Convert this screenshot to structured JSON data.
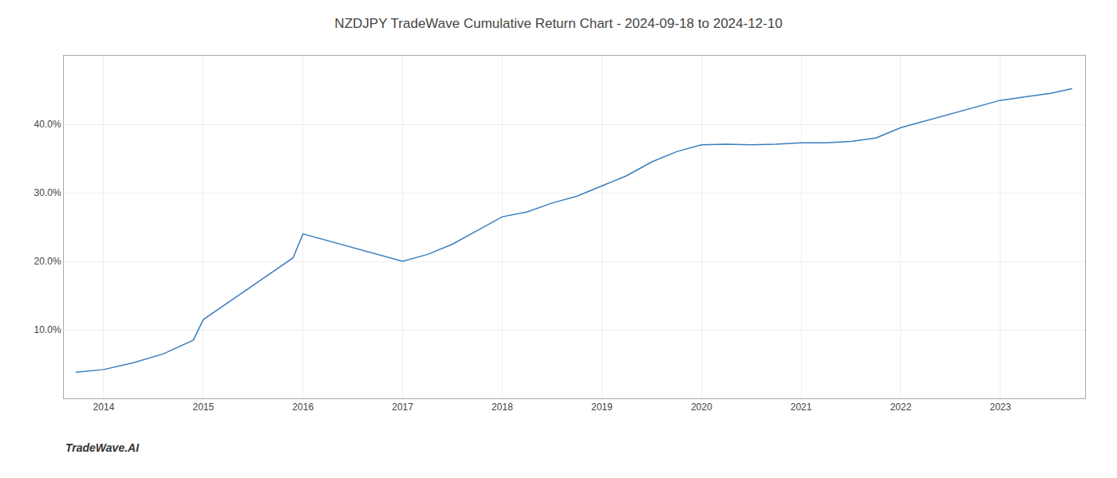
{
  "chart_data": {
    "type": "line",
    "title": "NZDJPY TradeWave Cumulative Return Chart - 2024-09-18 to 2024-12-10",
    "annotations": [
      "TradeWave.AI"
    ],
    "x": [
      2013.72,
      2014.0,
      2014.3,
      2014.6,
      2014.9,
      2015.0,
      2015.3,
      2015.6,
      2015.9,
      2016.0,
      2016.25,
      2016.5,
      2016.75,
      2017.0,
      2017.25,
      2017.5,
      2017.75,
      2018.0,
      2018.25,
      2018.5,
      2018.75,
      2019.0,
      2019.25,
      2019.5,
      2019.75,
      2020.0,
      2020.25,
      2020.5,
      2020.75,
      2021.0,
      2021.25,
      2021.5,
      2021.75,
      2022.0,
      2022.25,
      2022.5,
      2022.75,
      2023.0,
      2023.25,
      2023.5,
      2023.72
    ],
    "values": [
      3.8,
      4.2,
      5.2,
      6.5,
      8.5,
      11.5,
      14.5,
      17.5,
      20.5,
      24.0,
      23.0,
      22.0,
      21.0,
      20.0,
      21.0,
      22.5,
      24.5,
      26.5,
      27.2,
      28.5,
      29.5,
      31.0,
      32.5,
      34.5,
      36.0,
      37.0,
      37.1,
      37.0,
      37.1,
      37.3,
      37.3,
      37.5,
      38.0,
      39.5,
      40.5,
      41.5,
      42.5,
      43.5,
      44.0,
      44.5,
      45.2
    ],
    "color": "#3a7ebf",
    "xlim": [
      2013.6,
      2023.85
    ],
    "ylim": [
      0,
      50
    ],
    "xticks": [
      2014,
      2015,
      2016,
      2017,
      2018,
      2019,
      2020,
      2021,
      2022,
      2023
    ],
    "yticks": [
      {
        "value": 10.0,
        "label": "10.0%"
      },
      {
        "value": 20.0,
        "label": "20.0%"
      },
      {
        "value": 30.0,
        "label": "30.0%"
      },
      {
        "value": 40.0,
        "label": "40.0%"
      }
    ],
    "grid": true
  }
}
